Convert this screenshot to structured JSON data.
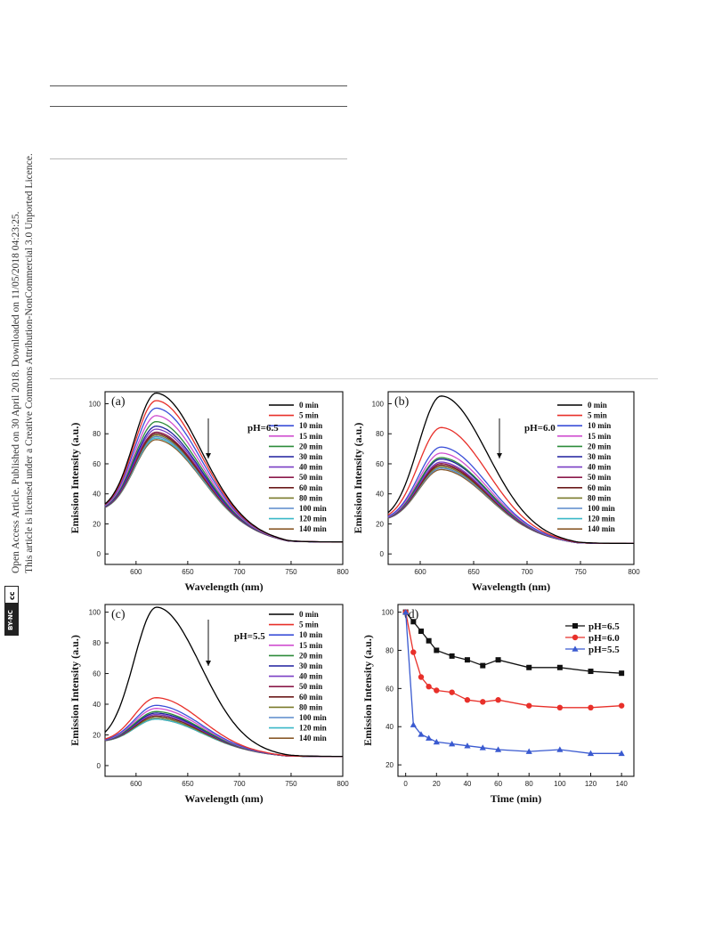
{
  "sidebar": {
    "line1": "Open Access Article. Published on 30 April 2018. Downloaded on 11/05/2018 04:23:25.",
    "line2": "This article is licensed under a Creative Commons Attribution-NonCommercial 3.0 Unported Licence.",
    "badge_cc": "cc",
    "badge_license": "BY-NC"
  },
  "colors": {
    "0 min": "#000000",
    "5 min": "#e8302a",
    "10 min": "#3b4fd8",
    "15 min": "#d04fd0",
    "20 min": "#2e8b3a",
    "30 min": "#1e1e9e",
    "40 min": "#7a3fc4",
    "50 min": "#8b1a4a",
    "60 min": "#6b1a1a",
    "80 min": "#7a7a2a",
    "100 min": "#5a8acb",
    "120 min": "#3ab8c8",
    "140 min": "#8a5a2a",
    "pH=6.5": "#111111",
    "pH=6.0": "#e8302a",
    "pH=5.5": "#3a5ad0"
  },
  "chart_data": [
    {
      "id": "a",
      "type": "line",
      "panel_label": "(a)",
      "annotation": "pH=6.5",
      "xlabel": "Wavelength (nm)",
      "ylabel": "Emission Intensity (a.u.)",
      "xlim": [
        570,
        800
      ],
      "ylim": [
        -7,
        108
      ],
      "xticks": [
        600,
        650,
        700,
        750,
        800
      ],
      "yticks": [
        0,
        20,
        40,
        60,
        80,
        100
      ],
      "legend_position": "top-right",
      "baseline_start": 27,
      "baseline_end": 8,
      "series": [
        {
          "name": "0 min",
          "peak": 100
        },
        {
          "name": "5 min",
          "peak": 95
        },
        {
          "name": "10 min",
          "peak": 90
        },
        {
          "name": "15 min",
          "peak": 85
        },
        {
          "name": "20 min",
          "peak": 81
        },
        {
          "name": "30 min",
          "peak": 78
        },
        {
          "name": "40 min",
          "peak": 76
        },
        {
          "name": "50 min",
          "peak": 74
        },
        {
          "name": "60 min",
          "peak": 73
        },
        {
          "name": "80 min",
          "peak": 72
        },
        {
          "name": "100 min",
          "peak": 71
        },
        {
          "name": "120 min",
          "peak": 70
        },
        {
          "name": "140 min",
          "peak": 69
        }
      ]
    },
    {
      "id": "b",
      "type": "line",
      "panel_label": "(b)",
      "annotation": "pH=6.0",
      "xlabel": "Wavelength (nm)",
      "ylabel": "Emission Intensity (a.u.)",
      "xlim": [
        570,
        800
      ],
      "ylim": [
        -7,
        108
      ],
      "xticks": [
        600,
        650,
        700,
        750,
        800
      ],
      "yticks": [
        0,
        20,
        40,
        60,
        80,
        100
      ],
      "legend_position": "top-right",
      "baseline_start": 21,
      "baseline_end": 7,
      "series": [
        {
          "name": "0 min",
          "peak": 100
        },
        {
          "name": "5 min",
          "peak": 79
        },
        {
          "name": "10 min",
          "peak": 66
        },
        {
          "name": "15 min",
          "peak": 62
        },
        {
          "name": "20 min",
          "peak": 59
        },
        {
          "name": "30 min",
          "peak": 58
        },
        {
          "name": "40 min",
          "peak": 56
        },
        {
          "name": "50 min",
          "peak": 55
        },
        {
          "name": "60 min",
          "peak": 54
        },
        {
          "name": "80 min",
          "peak": 53
        },
        {
          "name": "100 min",
          "peak": 52
        },
        {
          "name": "120 min",
          "peak": 52
        },
        {
          "name": "140 min",
          "peak": 51
        }
      ]
    },
    {
      "id": "c",
      "type": "line",
      "panel_label": "(c)",
      "annotation": "pH=5.5",
      "xlabel": "Wavelength (nm)",
      "ylabel": "Emission Intensity (a.u.)",
      "xlim": [
        570,
        800
      ],
      "ylim": [
        -7,
        105
      ],
      "xticks": [
        600,
        650,
        700,
        750,
        800
      ],
      "yticks": [
        0,
        20,
        40,
        60,
        80,
        100
      ],
      "legend_position": "top-right",
      "baseline_start": 15,
      "baseline_end": 6,
      "series": [
        {
          "name": "0 min",
          "peak": 100
        },
        {
          "name": "5 min",
          "peak": 41
        },
        {
          "name": "10 min",
          "peak": 36
        },
        {
          "name": "15 min",
          "peak": 34
        },
        {
          "name": "20 min",
          "peak": 32
        },
        {
          "name": "30 min",
          "peak": 31
        },
        {
          "name": "40 min",
          "peak": 30
        },
        {
          "name": "50 min",
          "peak": 30
        },
        {
          "name": "60 min",
          "peak": 29
        },
        {
          "name": "80 min",
          "peak": 28
        },
        {
          "name": "100 min",
          "peak": 28
        },
        {
          "name": "120 min",
          "peak": 27
        },
        {
          "name": "140 min",
          "peak": 27
        }
      ]
    },
    {
      "id": "d",
      "type": "line",
      "panel_label": "(d)",
      "xlabel": "Time (min)",
      "ylabel": "Emission Intensity (a.u.)",
      "xlim": [
        -5,
        148
      ],
      "ylim": [
        14,
        104
      ],
      "xticks": [
        0,
        20,
        40,
        60,
        80,
        100,
        120,
        140
      ],
      "yticks": [
        20,
        40,
        60,
        80,
        100
      ],
      "legend_position": "top-right",
      "x": [
        0,
        5,
        10,
        15,
        20,
        30,
        40,
        50,
        60,
        80,
        100,
        120,
        140
      ],
      "series": [
        {
          "name": "pH=6.5",
          "marker": "square",
          "values": [
            100,
            95,
            90,
            85,
            80,
            77,
            75,
            72,
            75,
            71,
            71,
            69,
            68
          ]
        },
        {
          "name": "pH=6.0",
          "marker": "circle",
          "values": [
            100,
            79,
            66,
            61,
            59,
            58,
            54,
            53,
            54,
            51,
            50,
            50,
            51
          ]
        },
        {
          "name": "pH=5.5",
          "marker": "triangle",
          "values": [
            100,
            41,
            36,
            34,
            32,
            31,
            30,
            29,
            28,
            27,
            28,
            26,
            26
          ]
        }
      ]
    }
  ]
}
